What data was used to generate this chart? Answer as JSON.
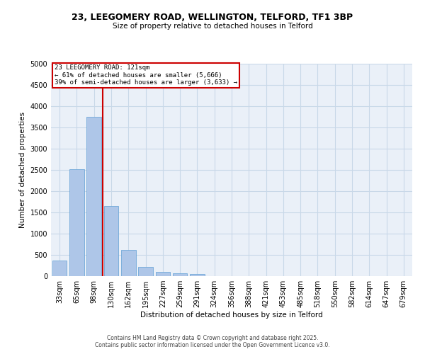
{
  "title1": "23, LEEGOMERY ROAD, WELLINGTON, TELFORD, TF1 3BP",
  "title2": "Size of property relative to detached houses in Telford",
  "xlabel": "Distribution of detached houses by size in Telford",
  "ylabel": "Number of detached properties",
  "categories": [
    "33sqm",
    "65sqm",
    "98sqm",
    "130sqm",
    "162sqm",
    "195sqm",
    "227sqm",
    "259sqm",
    "291sqm",
    "324sqm",
    "356sqm",
    "388sqm",
    "421sqm",
    "453sqm",
    "485sqm",
    "518sqm",
    "550sqm",
    "582sqm",
    "614sqm",
    "647sqm",
    "679sqm"
  ],
  "values": [
    375,
    2525,
    3750,
    1650,
    625,
    225,
    100,
    60,
    50,
    0,
    0,
    0,
    0,
    0,
    0,
    0,
    0,
    0,
    0,
    0,
    0
  ],
  "bar_color": "#aec6e8",
  "bar_edge_color": "#5f9fd4",
  "vline_x_index": 3,
  "vline_color": "#cc0000",
  "annotation_title": "23 LEEGOMERY ROAD: 121sqm",
  "annotation_line1": "← 61% of detached houses are smaller (5,666)",
  "annotation_line2": "39% of semi-detached houses are larger (3,633) →",
  "annotation_box_color": "#cc0000",
  "ylim": [
    0,
    5000
  ],
  "yticks": [
    0,
    500,
    1000,
    1500,
    2000,
    2500,
    3000,
    3500,
    4000,
    4500,
    5000
  ],
  "grid_color": "#c8d8e8",
  "bg_color": "#eaf0f8",
  "footer1": "Contains HM Land Registry data © Crown copyright and database right 2025.",
  "footer2": "Contains public sector information licensed under the Open Government Licence v3.0."
}
